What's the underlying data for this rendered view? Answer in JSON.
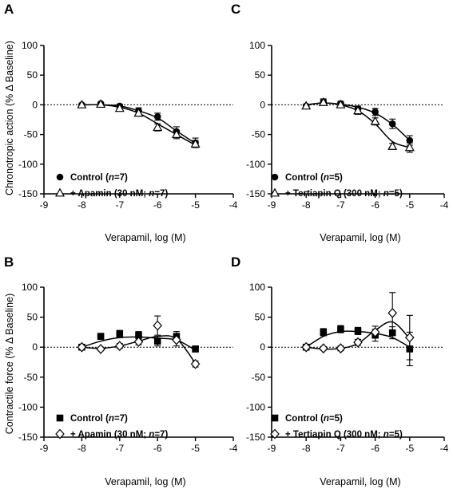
{
  "figure": {
    "panels": [
      {
        "letter": "A",
        "ylabel": "Chronotropic action (% Δ Baseline)",
        "xlabel": "Verapamil, log (M)",
        "marker_style": "round",
        "legend": [
          {
            "prefix": "Control (",
            "italic": "n",
            "suffix": "=7)"
          },
          {
            "prefix": "+ Apamin (30 nM; ",
            "italic": "n",
            "suffix": "=7)"
          }
        ]
      },
      {
        "letter": "C",
        "ylabel": "",
        "xlabel": "Verapamil, log (M)",
        "marker_style": "round",
        "legend": [
          {
            "prefix": "Control (",
            "italic": "n",
            "suffix": "=5)"
          },
          {
            "prefix": "+ Tertiapin Q (300 nM; ",
            "italic": "n",
            "suffix": "=5)"
          }
        ]
      },
      {
        "letter": "B",
        "ylabel": "Contractile force (% Δ Baseline)",
        "xlabel": "Verapamil, log (M)",
        "marker_style": "square",
        "legend": [
          {
            "prefix": "Control (",
            "italic": "n",
            "suffix": "=7)"
          },
          {
            "prefix": "+ Apamin (30 nM; ",
            "italic": "n",
            "suffix": "=7)"
          }
        ]
      },
      {
        "letter": "D",
        "ylabel": "",
        "xlabel": "Verapamil, log (M)",
        "marker_style": "square",
        "legend": [
          {
            "prefix": "Control (",
            "italic": "n",
            "suffix": "=5)"
          },
          {
            "prefix": "+ Tertiapin Q (300 nM; ",
            "italic": "n",
            "suffix": "=5)"
          }
        ]
      }
    ]
  },
  "chart_data": [
    {
      "type": "scatter",
      "panel": "A",
      "xlabel": "Verapamil, log (M)",
      "ylabel": "Chronotropic action (% Δ Baseline)",
      "xlim": [
        -9,
        -4
      ],
      "ylim": [
        -150,
        100
      ],
      "xticks": [
        -9,
        -8,
        -7,
        -6,
        -5,
        -4
      ],
      "yticks": [
        -150,
        -100,
        -50,
        0,
        50,
        100
      ],
      "reference_line": 0,
      "x": [
        -8,
        -7.5,
        -7,
        -6.5,
        -6,
        -5.5,
        -5
      ],
      "series": [
        {
          "name": "Control (n=7)",
          "marker": "filled-circle",
          "color": "#000000",
          "y": [
            0,
            2,
            -2,
            -10,
            -20,
            -45,
            -64
          ],
          "err": [
            2,
            2,
            3,
            5,
            6,
            8,
            8
          ],
          "fit": [
            0,
            0,
            -2,
            -10,
            -22,
            -44,
            -65
          ]
        },
        {
          "name": "+ Apamin (30 nM; n=7)",
          "marker": "open-triangle",
          "color": "#000000",
          "y": [
            0,
            1,
            -6,
            -14,
            -38,
            -50,
            -66
          ],
          "err": [
            2,
            2,
            3,
            4,
            6,
            7,
            6
          ],
          "fit": [
            0,
            0,
            -4,
            -14,
            -32,
            -50,
            -68
          ]
        }
      ]
    },
    {
      "type": "scatter",
      "panel": "C",
      "xlabel": "Verapamil, log (M)",
      "ylabel": "",
      "xlim": [
        -9,
        -4
      ],
      "ylim": [
        -150,
        100
      ],
      "xticks": [
        -9,
        -8,
        -7,
        -6,
        -5,
        -4
      ],
      "yticks": [
        -150,
        -100,
        -50,
        0,
        50,
        100
      ],
      "reference_line": 0,
      "x": [
        -8,
        -7.5,
        -7,
        -6.5,
        -6,
        -5.5,
        -5
      ],
      "series": [
        {
          "name": "Control (n=5)",
          "marker": "filled-circle",
          "color": "#000000",
          "y": [
            -2,
            5,
            2,
            -7,
            -12,
            -32,
            -60
          ],
          "err": [
            3,
            5,
            4,
            5,
            6,
            8,
            8
          ],
          "fit": [
            0,
            3,
            1,
            -4,
            -14,
            -33,
            -60
          ]
        },
        {
          "name": "+ Tertiapin Q (300 nM; n=5)",
          "marker": "open-triangle",
          "color": "#000000",
          "y": [
            -2,
            4,
            0,
            -10,
            -28,
            -70,
            -72
          ],
          "err": [
            2,
            4,
            4,
            6,
            6,
            5,
            8
          ],
          "fit": [
            0,
            3,
            0,
            -10,
            -32,
            -62,
            -72
          ]
        }
      ]
    },
    {
      "type": "scatter",
      "panel": "B",
      "xlabel": "Verapamil, log (M)",
      "ylabel": "Contractile force (% Δ Baseline)",
      "xlim": [
        -9,
        -4
      ],
      "ylim": [
        -150,
        100
      ],
      "xticks": [
        -9,
        -8,
        -7,
        -6,
        -5,
        -4
      ],
      "yticks": [
        -150,
        -100,
        -50,
        0,
        50,
        100
      ],
      "reference_line": 0,
      "x": [
        -8,
        -7.5,
        -7,
        -6.5,
        -6,
        -5.5,
        -5
      ],
      "series": [
        {
          "name": "Control (n=7)",
          "marker": "filled-square",
          "color": "#000000",
          "y": [
            0,
            18,
            22,
            20,
            10,
            18,
            -3
          ],
          "err": [
            3,
            5,
            6,
            6,
            8,
            8,
            5
          ],
          "fit": [
            0,
            10,
            16,
            17,
            15,
            12,
            -5
          ]
        },
        {
          "name": "+ Apamin (30 nM; n=7)",
          "marker": "open-diamond",
          "color": "#000000",
          "y": [
            0,
            -3,
            2,
            9,
            36,
            12,
            -28
          ],
          "err": [
            2,
            3,
            4,
            5,
            16,
            10,
            5
          ],
          "fit": [
            0,
            -2,
            2,
            10,
            18,
            14,
            -27
          ]
        }
      ]
    },
    {
      "type": "scatter",
      "panel": "D",
      "xlabel": "Verapamil, log (M)",
      "ylabel": "",
      "xlim": [
        -9,
        -4
      ],
      "ylim": [
        -150,
        100
      ],
      "xticks": [
        -9,
        -8,
        -7,
        -6,
        -5,
        -4
      ],
      "yticks": [
        -150,
        -100,
        -50,
        0,
        50,
        100
      ],
      "reference_line": 0,
      "x": [
        -8,
        -7.5,
        -7,
        -6.5,
        -6,
        -5.5,
        -5
      ],
      "series": [
        {
          "name": "Control (n=5)",
          "marker": "filled-square",
          "color": "#000000",
          "y": [
            0,
            25,
            30,
            27,
            20,
            24,
            -3
          ],
          "err": [
            3,
            6,
            6,
            6,
            10,
            10,
            28
          ],
          "fit": [
            0,
            18,
            26,
            26,
            23,
            16,
            0
          ]
        },
        {
          "name": "+ Tertiapin Q (300 nM; n=5)",
          "marker": "open-diamond",
          "color": "#000000",
          "y": [
            0,
            -2,
            -2,
            8,
            25,
            57,
            16
          ],
          "err": [
            2,
            3,
            4,
            5,
            10,
            34,
            37
          ],
          "fit": [
            0,
            -3,
            -2,
            6,
            28,
            42,
            14
          ]
        }
      ]
    }
  ]
}
